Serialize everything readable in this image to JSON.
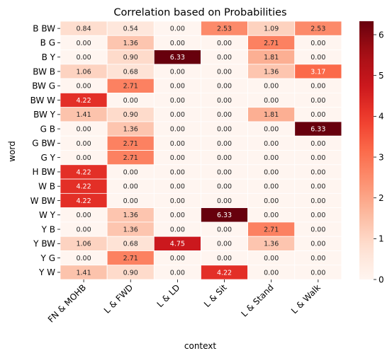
{
  "chart_data": {
    "type": "heatmap",
    "title": "Correlation based on Probabilities",
    "xlabel": "context",
    "ylabel": "word",
    "x_categories": [
      "FN & MOHB",
      "L & FWD",
      "L & LD",
      "L & Sit",
      "L & Stand",
      "L & Walk"
    ],
    "y_categories": [
      "B BW",
      "B G",
      "B Y",
      "BW B",
      "BW G",
      "BW W",
      "BW Y",
      "G B",
      "G BW",
      "G Y",
      "H BW",
      "W B",
      "W BW",
      "W Y",
      "Y B",
      "Y BW",
      "Y G",
      "Y W"
    ],
    "values": [
      [
        0.84,
        0.54,
        0.0,
        2.53,
        1.09,
        2.53
      ],
      [
        0.0,
        1.36,
        0.0,
        0.0,
        2.71,
        0.0
      ],
      [
        0.0,
        0.9,
        6.33,
        0.0,
        1.81,
        0.0
      ],
      [
        1.06,
        0.68,
        0.0,
        0.0,
        1.36,
        3.17
      ],
      [
        0.0,
        2.71,
        0.0,
        0.0,
        0.0,
        0.0
      ],
      [
        4.22,
        0.0,
        0.0,
        0.0,
        0.0,
        0.0
      ],
      [
        1.41,
        0.9,
        0.0,
        0.0,
        1.81,
        0.0
      ],
      [
        0.0,
        1.36,
        0.0,
        0.0,
        0.0,
        6.33
      ],
      [
        0.0,
        2.71,
        0.0,
        0.0,
        0.0,
        0.0
      ],
      [
        0.0,
        2.71,
        0.0,
        0.0,
        0.0,
        0.0
      ],
      [
        4.22,
        0.0,
        0.0,
        0.0,
        0.0,
        0.0
      ],
      [
        4.22,
        0.0,
        0.0,
        0.0,
        0.0,
        0.0
      ],
      [
        4.22,
        0.0,
        0.0,
        0.0,
        0.0,
        0.0
      ],
      [
        0.0,
        1.36,
        0.0,
        6.33,
        0.0,
        0.0
      ],
      [
        0.0,
        1.36,
        0.0,
        0.0,
        2.71,
        0.0
      ],
      [
        1.06,
        0.68,
        4.75,
        0.0,
        1.36,
        0.0
      ],
      [
        0.0,
        2.71,
        0.0,
        0.0,
        0.0,
        0.0
      ],
      [
        1.41,
        0.9,
        0.0,
        4.22,
        0.0,
        0.0
      ]
    ],
    "value_format": "0.00",
    "colorscale": "Reds",
    "colorbar": {
      "min": 0,
      "max": 6.33,
      "ticks": [
        0,
        1,
        2,
        3,
        4,
        5,
        6
      ]
    }
  }
}
